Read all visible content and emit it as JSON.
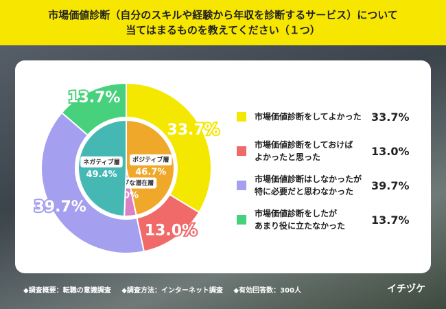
{
  "chart_data": {
    "type": "donut",
    "title": [
      "市場価値診断（自分のスキルや経験から年収を診断するサービス）について",
      "当てはまるものを教えてください（１つ）"
    ],
    "series": [
      {
        "name": "市場価値診断をしてよかった",
        "color": "#f5e800"
      },
      {
        "name": "市場価値診断をしておけば\nよかったと思った",
        "color": "#f06a6a"
      },
      {
        "name": "市場価値診断はしなかったが\n特に必要だと思わなかった",
        "color": "#a59ff0"
      },
      {
        "name": "市場価値診断をしたが\nあまり役に立たなかった",
        "color": "#48d17c"
      }
    ],
    "values": [
      33.7,
      13.0,
      39.7,
      13.7
    ],
    "value_labels": [
      "33.7%",
      "13.0%",
      "39.7%",
      "13.7%"
    ],
    "inner": {
      "categories": [
        "ポジティブ層",
        "ポジティブな潜在層",
        "ネガティブ層"
      ],
      "values": [
        46.7,
        4.0,
        49.4
      ],
      "value_labels": [
        "46.7%",
        "4.0%",
        "49.4%"
      ],
      "colors": [
        "#f0a82a",
        "#d981c4",
        "#46b8b4"
      ]
    },
    "notes": [
      "◆調査概要：転職の意識調査",
      "◆調査方法：インターネット調査",
      "◆有効回答数：300人"
    ],
    "brand": "イチヅケ"
  }
}
